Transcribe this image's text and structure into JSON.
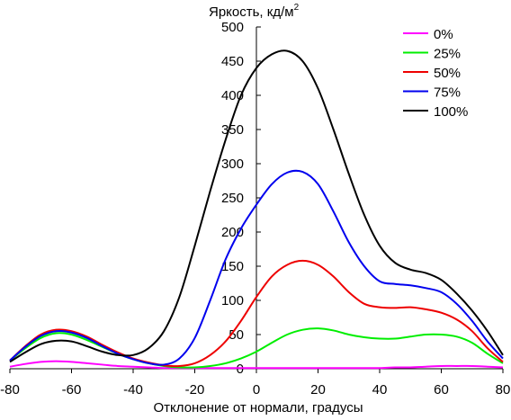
{
  "chart_data": {
    "type": "line",
    "title": "",
    "ylabel": "Яркость, кд/м",
    "ylabel_superscript": "2",
    "xlabel": "Отклонение от нормали, градусы",
    "xlim": [
      -80,
      80
    ],
    "ylim": [
      0,
      500
    ],
    "x_ticks": [
      -80,
      -60,
      -40,
      -20,
      0,
      20,
      40,
      60,
      80
    ],
    "y_ticks": [
      0,
      50,
      100,
      150,
      200,
      250,
      300,
      350,
      400,
      450,
      500
    ],
    "grid": false,
    "legend_position": "top-right",
    "x": [
      -80,
      -75,
      -70,
      -65,
      -60,
      -55,
      -50,
      -45,
      -40,
      -35,
      -30,
      -25,
      -20,
      -15,
      -10,
      -5,
      0,
      5,
      10,
      15,
      20,
      25,
      30,
      35,
      40,
      45,
      50,
      55,
      60,
      65,
      70,
      75,
      80
    ],
    "series": [
      {
        "name": "0%",
        "color": "#ff00ff",
        "values": [
          3,
          7,
          10,
          11,
          10,
          8,
          6,
          4,
          3,
          2,
          1,
          1,
          1,
          1,
          1,
          1,
          1,
          1,
          1,
          1,
          1,
          1,
          1,
          1,
          1,
          2,
          2,
          3,
          4,
          4,
          4,
          3,
          2
        ]
      },
      {
        "name": "25%",
        "color": "#00ee00",
        "values": [
          12,
          30,
          45,
          52,
          50,
          42,
          32,
          22,
          14,
          8,
          4,
          2,
          2,
          4,
          8,
          15,
          25,
          38,
          50,
          57,
          59,
          56,
          50,
          46,
          44,
          44,
          47,
          50,
          50,
          47,
          38,
          22,
          8
        ]
      },
      {
        "name": "50%",
        "color": "#ee0000",
        "values": [
          12,
          33,
          50,
          57,
          55,
          47,
          35,
          24,
          15,
          9,
          5,
          4,
          8,
          20,
          40,
          70,
          105,
          135,
          152,
          158,
          152,
          135,
          112,
          95,
          90,
          89,
          90,
          87,
          82,
          72,
          55,
          30,
          10
        ]
      },
      {
        "name": "75%",
        "color": "#0000ee",
        "values": [
          12,
          32,
          48,
          55,
          53,
          45,
          33,
          22,
          14,
          8,
          6,
          15,
          45,
          100,
          160,
          205,
          240,
          270,
          287,
          288,
          270,
          230,
          185,
          150,
          128,
          124,
          122,
          118,
          112,
          95,
          70,
          40,
          15
        ]
      },
      {
        "name": "100%",
        "color": "#000000",
        "values": [
          10,
          24,
          36,
          41,
          40,
          33,
          25,
          20,
          20,
          30,
          55,
          105,
          180,
          260,
          335,
          400,
          440,
          460,
          465,
          450,
          410,
          350,
          285,
          225,
          180,
          155,
          145,
          140,
          130,
          110,
          85,
          55,
          20
        ]
      }
    ]
  }
}
